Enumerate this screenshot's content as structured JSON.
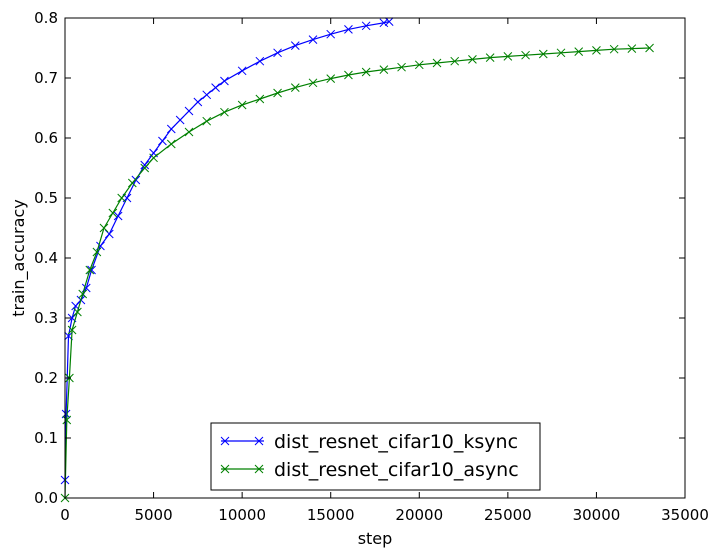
{
  "chart_data": {
    "type": "line",
    "title": "",
    "xlabel": "step",
    "ylabel": "train_accuracy",
    "xlim": [
      0,
      35000
    ],
    "ylim": [
      0,
      0.8
    ],
    "xticks": [
      0,
      5000,
      10000,
      15000,
      20000,
      25000,
      30000,
      35000
    ],
    "yticks": [
      0.0,
      0.1,
      0.2,
      0.3,
      0.4,
      0.5,
      0.6,
      0.7,
      0.8
    ],
    "xtick_labels": [
      "0",
      "5000",
      "10000",
      "15000",
      "20000",
      "25000",
      "30000",
      "35000"
    ],
    "ytick_labels": [
      "0.0",
      "0.1",
      "0.2",
      "0.3",
      "0.4",
      "0.5",
      "0.6",
      "0.7",
      "0.8"
    ],
    "grid": false,
    "legend_position": "bottom-center",
    "series": [
      {
        "name": "dist_resnet_cifar10_ksync",
        "color": "#0000ff",
        "marker": "x",
        "points": [
          [
            0,
            0.03
          ],
          [
            60,
            0.14
          ],
          [
            200,
            0.27
          ],
          [
            400,
            0.3
          ],
          [
            600,
            0.32
          ],
          [
            900,
            0.33
          ],
          [
            1200,
            0.35
          ],
          [
            1500,
            0.38
          ],
          [
            2000,
            0.42
          ],
          [
            2500,
            0.44
          ],
          [
            3000,
            0.47
          ],
          [
            3500,
            0.5
          ],
          [
            4000,
            0.53
          ],
          [
            4500,
            0.555
          ],
          [
            5000,
            0.575
          ],
          [
            5500,
            0.595
          ],
          [
            6000,
            0.615
          ],
          [
            6500,
            0.63
          ],
          [
            7000,
            0.645
          ],
          [
            7500,
            0.66
          ],
          [
            8000,
            0.672
          ],
          [
            8500,
            0.684
          ],
          [
            9000,
            0.695
          ],
          [
            10000,
            0.712
          ],
          [
            11000,
            0.728
          ],
          [
            12000,
            0.742
          ],
          [
            13000,
            0.754
          ],
          [
            14000,
            0.764
          ],
          [
            15000,
            0.773
          ],
          [
            16000,
            0.781
          ],
          [
            17000,
            0.787
          ],
          [
            18000,
            0.792
          ],
          [
            18300,
            0.794
          ]
        ]
      },
      {
        "name": "dist_resnet_cifar10_async",
        "color": "#008000",
        "marker": "x",
        "points": [
          [
            0,
            0.0
          ],
          [
            100,
            0.13
          ],
          [
            250,
            0.2
          ],
          [
            400,
            0.28
          ],
          [
            700,
            0.31
          ],
          [
            1000,
            0.34
          ],
          [
            1400,
            0.38
          ],
          [
            1800,
            0.41
          ],
          [
            2200,
            0.45
          ],
          [
            2700,
            0.475
          ],
          [
            3200,
            0.5
          ],
          [
            3800,
            0.525
          ],
          [
            4500,
            0.55
          ],
          [
            5000,
            0.567
          ],
          [
            6000,
            0.59
          ],
          [
            7000,
            0.61
          ],
          [
            8000,
            0.628
          ],
          [
            9000,
            0.643
          ],
          [
            10000,
            0.655
          ],
          [
            11000,
            0.665
          ],
          [
            12000,
            0.675
          ],
          [
            13000,
            0.684
          ],
          [
            14000,
            0.692
          ],
          [
            15000,
            0.699
          ],
          [
            16000,
            0.705
          ],
          [
            17000,
            0.71
          ],
          [
            18000,
            0.714
          ],
          [
            19000,
            0.718
          ],
          [
            20000,
            0.722
          ],
          [
            21000,
            0.725
          ],
          [
            22000,
            0.728
          ],
          [
            23000,
            0.731
          ],
          [
            24000,
            0.734
          ],
          [
            25000,
            0.736
          ],
          [
            26000,
            0.738
          ],
          [
            27000,
            0.74
          ],
          [
            28000,
            0.742
          ],
          [
            29000,
            0.744
          ],
          [
            30000,
            0.746
          ],
          [
            31000,
            0.748
          ],
          [
            32000,
            0.749
          ],
          [
            33000,
            0.75
          ]
        ]
      }
    ]
  }
}
